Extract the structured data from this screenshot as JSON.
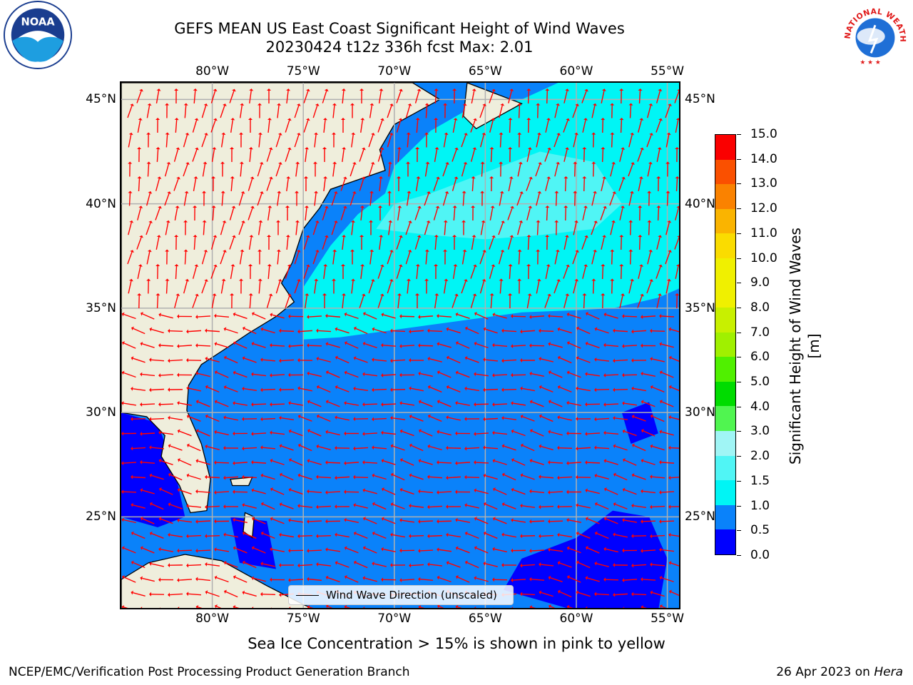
{
  "title": {
    "line1": "GEFS MEAN US East Coast Significant Height of Wind Waves",
    "line2": "20230424 t12z 336h fcst   Max: 2.01"
  },
  "map": {
    "lon_labels": [
      "80°W",
      "75°W",
      "70°W",
      "65°W",
      "60°W",
      "55°W"
    ],
    "lat_labels": [
      "45°N",
      "40°N",
      "35°N",
      "30°N",
      "25°N"
    ],
    "extent": {
      "lon_min": -85,
      "lon_max": -54.2,
      "lat_min": 20.5,
      "lat_max": 45.8
    },
    "colors": {
      "land": "#efeedc",
      "water_low": "#0a82fa",
      "grid": "#b0b0b0",
      "arrow": "#ff0000"
    },
    "legend_label": "Wind Wave Direction (unscaled)"
  },
  "colorbar": {
    "title": "Significant Height of Wind Waves [m]",
    "ticks": [
      "0.0",
      "0.5",
      "1.0",
      "1.5",
      "2.0",
      "3.0",
      "4.0",
      "5.0",
      "6.0",
      "7.0",
      "8.0",
      "9.0",
      "10.0",
      "11.0",
      "12.0",
      "13.0",
      "14.0",
      "15.0"
    ],
    "colors": [
      "#0000ff",
      "#0a82fa",
      "#00f5f5",
      "#50f5f5",
      "#a0f5f5",
      "#50f550",
      "#00dc00",
      "#50f000",
      "#a0f000",
      "#c8f000",
      "#f0f000",
      "#f0f000",
      "#fadc00",
      "#fab400",
      "#fa8200",
      "#fa5000",
      "#fa0000"
    ]
  },
  "ice_note": "Sea Ice Concentration > 15% is shown in pink to yellow",
  "footer": {
    "left": "NCEP/EMC/Verification Post Processing Product Generation Branch",
    "right_date": "26 Apr 2023 on ",
    "right_host": "Hera"
  },
  "logos": {
    "noaa_text": "NOAA",
    "nws_text": "NATIONAL WEATHER SERVICE"
  }
}
